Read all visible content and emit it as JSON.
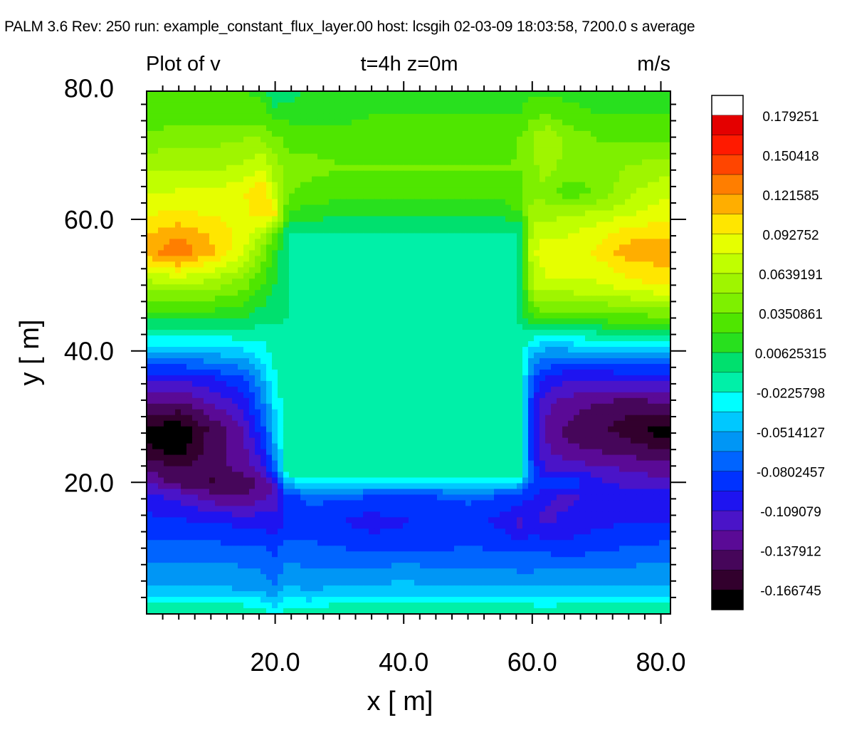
{
  "header": {
    "text": "PALM 3.6  Rev: 250  run: example_constant_flux_layer.00  host: lcsgih  02-03-09 18:03:58,  7200.0 s average"
  },
  "chart_data": {
    "type": "heatmap",
    "title": "Plot of v",
    "subtitle": "t=4h  z=0m",
    "units": "m/s",
    "xlabel": "x [ m]",
    "ylabel": "y [ m]",
    "xlim": [
      0,
      81.5
    ],
    "ylim": [
      0,
      79.5
    ],
    "x_ticks": [
      "20.0",
      "40.0",
      "60.0",
      "80.0"
    ],
    "y_ticks": [
      "20.0",
      "40.0",
      "60.0",
      "80.0"
    ],
    "x": [
      0,
      5,
      10,
      15,
      18,
      20,
      22,
      25,
      30,
      35,
      40,
      45,
      50,
      55,
      58,
      60,
      62,
      65,
      70,
      75,
      80
    ],
    "y": [
      0,
      3,
      6,
      10,
      14,
      18,
      20,
      22,
      25,
      28,
      32,
      36,
      40,
      45,
      50,
      55,
      58,
      61,
      64,
      68,
      72,
      76,
      80
    ],
    "z": [
      [
        0.012,
        0.012,
        0.012,
        0.012,
        0.01,
        -0.02,
        0.005,
        0.008,
        0.01,
        0.01,
        0.01,
        0.01,
        0.01,
        0.01,
        0.01,
        0.01,
        0.005,
        0.01,
        0.012,
        0.012,
        0.012
      ],
      [
        -0.03,
        -0.03,
        -0.03,
        -0.035,
        -0.035,
        -0.04,
        -0.03,
        -0.035,
        -0.03,
        -0.03,
        -0.03,
        -0.03,
        -0.03,
        -0.03,
        -0.03,
        -0.03,
        -0.03,
        -0.03,
        -0.03,
        -0.03,
        -0.03
      ],
      [
        -0.045,
        -0.045,
        -0.045,
        -0.045,
        -0.05,
        -0.06,
        -0.04,
        -0.05,
        -0.045,
        -0.045,
        -0.04,
        -0.045,
        -0.045,
        -0.045,
        -0.05,
        -0.05,
        -0.045,
        -0.045,
        -0.045,
        -0.045,
        -0.045
      ],
      [
        -0.06,
        -0.06,
        -0.06,
        -0.065,
        -0.065,
        -0.07,
        -0.06,
        -0.062,
        -0.065,
        -0.07,
        -0.07,
        -0.068,
        -0.065,
        -0.068,
        -0.07,
        -0.07,
        -0.07,
        -0.075,
        -0.07,
        -0.065,
        -0.062
      ],
      [
        -0.075,
        -0.078,
        -0.08,
        -0.085,
        -0.085,
        -0.09,
        -0.078,
        -0.075,
        -0.08,
        -0.088,
        -0.082,
        -0.078,
        -0.075,
        -0.085,
        -0.1,
        -0.09,
        -0.1,
        -0.09,
        -0.085,
        -0.08,
        -0.08
      ],
      [
        -0.09,
        -0.1,
        -0.12,
        -0.125,
        -0.115,
        -0.105,
        -0.07,
        -0.06,
        -0.062,
        -0.065,
        -0.065,
        -0.065,
        -0.062,
        -0.065,
        -0.07,
        -0.08,
        -0.09,
        -0.1,
        -0.09,
        -0.088,
        -0.09
      ],
      [
        -0.11,
        -0.13,
        -0.14,
        -0.135,
        -0.12,
        -0.1,
        -0.03,
        -0.02,
        -0.02,
        -0.02,
        -0.02,
        -0.02,
        -0.02,
        -0.02,
        -0.025,
        -0.07,
        -0.07,
        -0.06,
        -0.09,
        -0.1,
        -0.105
      ],
      [
        -0.125,
        -0.135,
        -0.13,
        -0.12,
        -0.1,
        -0.06,
        0.006,
        0.006,
        0.006,
        0.006,
        0.006,
        0.006,
        0.006,
        0.006,
        0.006,
        -0.07,
        -0.095,
        -0.1,
        -0.105,
        -0.11,
        -0.115
      ],
      [
        -0.15,
        -0.16,
        -0.13,
        -0.115,
        -0.085,
        -0.04,
        0.006,
        0.006,
        0.006,
        0.006,
        0.006,
        0.006,
        0.006,
        0.006,
        0.006,
        -0.08,
        -0.105,
        -0.12,
        -0.125,
        -0.13,
        -0.14
      ],
      [
        -0.155,
        -0.165,
        -0.135,
        -0.11,
        -0.07,
        -0.03,
        0.006,
        0.006,
        0.006,
        0.006,
        0.006,
        0.006,
        0.006,
        0.006,
        0.006,
        -0.085,
        -0.11,
        -0.125,
        -0.135,
        -0.145,
        -0.16
      ],
      [
        -0.125,
        -0.125,
        -0.11,
        -0.09,
        -0.055,
        -0.02,
        0.006,
        0.006,
        0.006,
        0.006,
        0.006,
        0.006,
        0.006,
        0.006,
        0.006,
        -0.08,
        -0.105,
        -0.115,
        -0.125,
        -0.13,
        -0.125
      ],
      [
        -0.09,
        -0.09,
        -0.08,
        -0.065,
        -0.035,
        -0.01,
        0.006,
        0.006,
        0.006,
        0.006,
        0.006,
        0.006,
        0.006,
        0.006,
        0.006,
        -0.06,
        -0.08,
        -0.09,
        -0.09,
        -0.09,
        -0.09
      ],
      [
        -0.03,
        -0.035,
        -0.03,
        -0.025,
        -0.015,
        0.0,
        0.006,
        0.006,
        0.006,
        0.006,
        0.006,
        0.006,
        0.006,
        0.006,
        0.006,
        -0.035,
        -0.04,
        -0.04,
        -0.038,
        -0.035,
        -0.035
      ],
      [
        0.025,
        0.025,
        0.025,
        0.02,
        0.012,
        0.008,
        0.006,
        0.006,
        0.006,
        0.006,
        0.006,
        0.006,
        0.006,
        0.006,
        0.006,
        0.035,
        0.04,
        0.04,
        0.042,
        0.045,
        0.045
      ],
      [
        0.07,
        0.075,
        0.07,
        0.055,
        0.035,
        0.02,
        0.006,
        0.006,
        0.006,
        0.006,
        0.006,
        0.006,
        0.006,
        0.006,
        0.006,
        0.08,
        0.09,
        0.09,
        0.09,
        0.1,
        0.11
      ],
      [
        0.13,
        0.15,
        0.125,
        0.095,
        0.06,
        0.03,
        0.006,
        0.006,
        0.006,
        0.006,
        0.006,
        0.006,
        0.006,
        0.006,
        0.006,
        0.09,
        0.1,
        0.1,
        0.11,
        0.13,
        0.13
      ],
      [
        0.12,
        0.13,
        0.12,
        0.1,
        0.08,
        0.05,
        0.006,
        0.006,
        0.006,
        0.006,
        0.006,
        0.006,
        0.006,
        0.006,
        0.006,
        0.085,
        0.09,
        0.09,
        0.1,
        0.115,
        0.115
      ],
      [
        0.105,
        0.11,
        0.105,
        0.1,
        0.12,
        0.11,
        0.035,
        0.03,
        0.025,
        0.025,
        0.025,
        0.025,
        0.025,
        0.025,
        0.035,
        0.07,
        0.07,
        0.075,
        0.08,
        0.09,
        0.1
      ],
      [
        0.09,
        0.095,
        0.095,
        0.105,
        0.125,
        0.085,
        0.05,
        0.045,
        0.04,
        0.04,
        0.04,
        0.04,
        0.04,
        0.04,
        0.045,
        0.06,
        0.06,
        0.04,
        0.05,
        0.075,
        0.09
      ],
      [
        0.075,
        0.075,
        0.075,
        0.08,
        0.09,
        0.07,
        0.055,
        0.055,
        0.05,
        0.05,
        0.05,
        0.05,
        0.05,
        0.05,
        0.05,
        0.06,
        0.07,
        0.06,
        0.055,
        0.065,
        0.07
      ],
      [
        0.055,
        0.06,
        0.06,
        0.065,
        0.065,
        0.055,
        0.045,
        0.045,
        0.042,
        0.042,
        0.045,
        0.045,
        0.045,
        0.045,
        0.05,
        0.065,
        0.08,
        0.065,
        0.05,
        0.05,
        0.05
      ],
      [
        0.04,
        0.04,
        0.04,
        0.04,
        0.04,
        0.03,
        0.03,
        0.03,
        0.03,
        0.035,
        0.035,
        0.035,
        0.035,
        0.035,
        0.035,
        0.045,
        0.05,
        0.04,
        0.035,
        0.035,
        0.035
      ],
      [
        0.035,
        0.035,
        0.035,
        0.035,
        0.03,
        0.0,
        0.01,
        0.02,
        0.03,
        0.03,
        0.03,
        0.03,
        0.03,
        0.03,
        0.03,
        0.03,
        0.03,
        0.03,
        0.03,
        0.03,
        0.03
      ]
    ],
    "colorbar": {
      "labels": [
        "0.179251",
        "0.150418",
        "0.121585",
        "0.092752",
        "0.0639191",
        "0.0350861",
        "0.00625315",
        "-0.0225798",
        "-0.0514127",
        "-0.0802457",
        "-0.109079",
        "-0.137912",
        "-0.166745"
      ],
      "levels": [
        0.208084,
        0.193668,
        0.179251,
        0.164835,
        0.150418,
        0.136002,
        0.121585,
        0.107169,
        0.092752,
        0.078336,
        0.0639191,
        0.049503,
        0.0350861,
        0.02067,
        0.00625315,
        -0.008163,
        -0.0225798,
        -0.036996,
        -0.0514127,
        -0.065829,
        -0.0802457,
        -0.094662,
        -0.109079,
        -0.123495,
        -0.137912,
        -0.152328,
        -0.166745,
        -0.181161
      ],
      "colors": [
        "#ffffff",
        "#e40000",
        "#ff1a00",
        "#ff4500",
        "#ff7e00",
        "#ffae00",
        "#ffe600",
        "#e6ff00",
        "#c0ff00",
        "#9ff500",
        "#7ef000",
        "#4fe600",
        "#28e01e",
        "#00e06e",
        "#00f0a8",
        "#00ffff",
        "#00c8ff",
        "#0096f5",
        "#0064ff",
        "#0032ff",
        "#1e14f0",
        "#4a14c8",
        "#5a0a96",
        "#46065a",
        "#32002d",
        "#000000"
      ]
    }
  }
}
